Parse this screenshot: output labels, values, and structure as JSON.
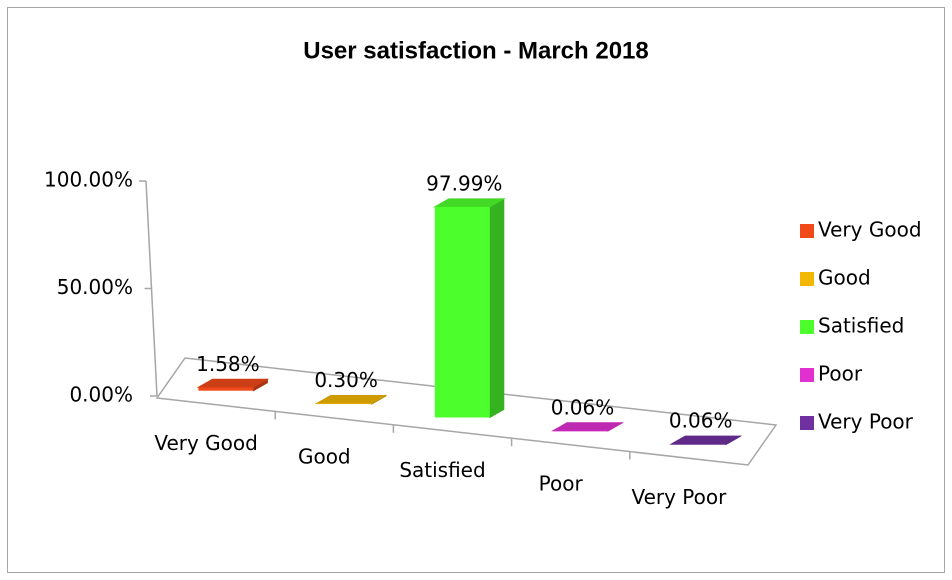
{
  "chart_data": {
    "type": "bar3d",
    "title": "User satisfaction - March 2018",
    "categories": [
      "Very Good",
      "Good",
      "Satisfied",
      "Poor",
      "Very Poor"
    ],
    "values": [
      1.58,
      0.3,
      97.99,
      0.06,
      0.06
    ],
    "value_labels": [
      "1.58%",
      "0.30%",
      "97.99%",
      "0.06%",
      "0.06%"
    ],
    "colors": [
      "#f04a1a",
      "#f2b700",
      "#4cff2c",
      "#e030d0",
      "#7030a0"
    ],
    "ylim": [
      0,
      100
    ],
    "yticks": [
      {
        "value": 0,
        "label": "0.00%"
      },
      {
        "value": 50,
        "label": "50.00%"
      },
      {
        "value": 100,
        "label": "100.00%"
      }
    ],
    "grid": false,
    "legend": "right"
  }
}
